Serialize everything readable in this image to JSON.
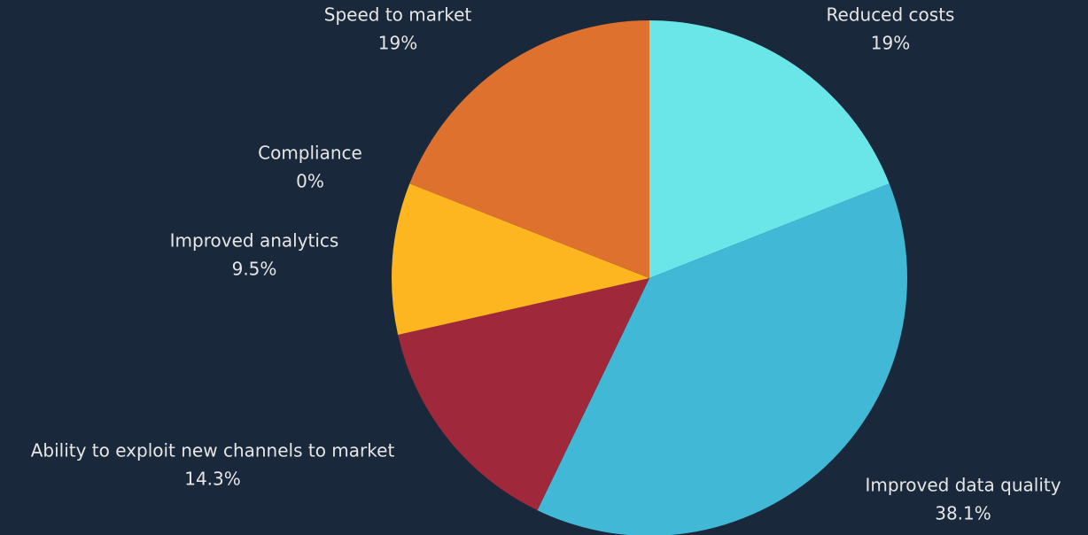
{
  "chart_data": {
    "type": "pie",
    "categories": [
      "Reduced costs",
      "Improved data quality",
      "Ability to exploit new channels to market",
      "Improved analytics",
      "Compliance",
      "Speed to market"
    ],
    "values": [
      19,
      38.1,
      14.3,
      9.5,
      0,
      19
    ],
    "value_labels": [
      "19%",
      "38.1%",
      "14.3%",
      "9.5%",
      "0%",
      "19%"
    ],
    "colors": [
      "#6ae5e8",
      "#41b8d5",
      "#a0283b",
      "#fdb61f",
      null,
      "#dd712d"
    ]
  }
}
